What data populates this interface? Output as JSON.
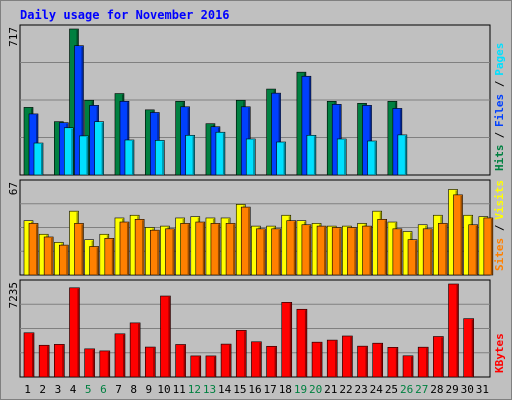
{
  "chart_data": {
    "title": "Daily usage for November 2016",
    "categories": [
      "1",
      "2",
      "3",
      "4",
      "5",
      "6",
      "7",
      "8",
      "9",
      "10",
      "11",
      "12",
      "13",
      "14",
      "15",
      "16",
      "17",
      "18",
      "19",
      "20",
      "21",
      "22",
      "23",
      "24",
      "25",
      "26",
      "27",
      "28",
      "29",
      "30",
      "31"
    ],
    "weekend_days": [
      "5",
      "6",
      "12",
      "13",
      "19",
      "20",
      "26",
      "27"
    ],
    "panels": [
      {
        "type": "bar",
        "max_label": "717",
        "ylim": [
          0,
          717
        ],
        "series": [
          {
            "name": "Hits",
            "color": "#008040",
            "values": [
              332,
              0,
              262,
              717,
              367,
              0,
              400,
              0,
              320,
              0,
              362,
              0,
              252,
              0,
              367,
              0,
              422,
              0,
              505,
              0,
              362,
              0,
              352,
              0,
              362,
              0,
              0,
              0,
              0,
              0,
              0
            ]
          },
          {
            "name": "Files",
            "color": "#0040ff",
            "values": [
              300,
              0,
              257,
              635,
              342,
              0,
              362,
              0,
              307,
              0,
              335,
              0,
              237,
              0,
              335,
              0,
              402,
              0,
              485,
              0,
              347,
              0,
              342,
              0,
              327,
              0,
              0,
              0,
              0,
              0,
              0
            ]
          },
          {
            "name": "Pages",
            "color": "#00e0ff",
            "values": [
              157,
              0,
              232,
              192,
              262,
              0,
              172,
              0,
              170,
              0,
              195,
              0,
              210,
              0,
              177,
              0,
              162,
              0,
              195,
              0,
              177,
              0,
              167,
              0,
              197,
              0,
              0,
              0,
              0,
              0,
              0
            ]
          }
        ],
        "legend": [
          "Hits",
          "Files",
          "Pages"
        ]
      },
      {
        "type": "bar",
        "max_label": "67",
        "ylim": [
          0,
          67
        ],
        "series": [
          {
            "name": "Visits",
            "color": "#ffff00",
            "values": [
              40,
              30,
              24,
              47,
              26,
              30,
              42,
              44,
              35,
              36,
              42,
              43,
              42,
              42,
              52,
              36,
              36,
              44,
              40,
              38,
              36,
              36,
              38,
              47,
              39,
              32,
              37,
              44,
              63,
              44,
              43
            ]
          },
          {
            "name": "Sites",
            "color": "#ff8000",
            "values": [
              38,
              28,
              22,
              38,
              21,
              27,
              39,
              41,
              33,
              34,
              38,
              39,
              38,
              38,
              50,
              34,
              34,
              40,
              37,
              36,
              35,
              35,
              36,
              41,
              34,
              26,
              34,
              38,
              59,
              37,
              42
            ]
          }
        ],
        "legend": [
          "Sites",
          "Visits"
        ]
      },
      {
        "type": "bar",
        "max_label": "7235",
        "ylim": [
          0,
          7235
        ],
        "series": [
          {
            "name": "KBytes",
            "color": "#ff0000",
            "values": [
              3440,
              2470,
              2540,
              6940,
              2190,
              2030,
              3360,
              4210,
              2330,
              6300,
              2530,
              1640,
              1640,
              2560,
              3630,
              2740,
              2390,
              5810,
              5270,
              2710,
              2870,
              3190,
              2400,
              2630,
              2310,
              1650,
              2320,
              3150,
              7235,
              4540,
              0
            ]
          }
        ],
        "legend": [
          "KBytes"
        ]
      }
    ]
  }
}
